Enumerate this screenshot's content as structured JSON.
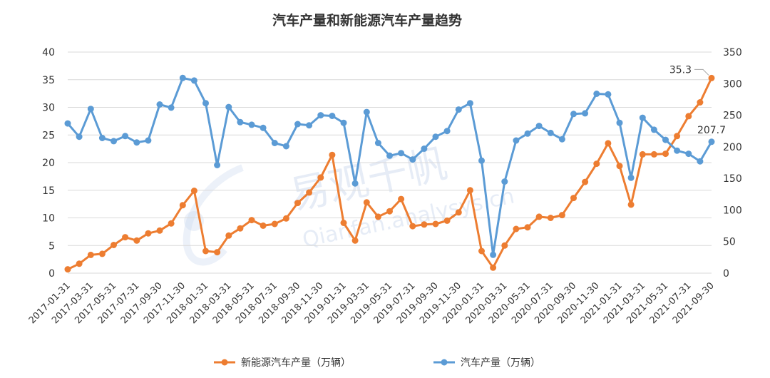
{
  "chart_data": {
    "type": "line",
    "title": "汽车产量和新能源汽车产量趋势",
    "xlabel": "",
    "ylabel_left": "",
    "ylabel_right": "",
    "ylim_left": [
      0,
      40
    ],
    "ylim_right": [
      0,
      350
    ],
    "yticks_left": [
      "0",
      "5",
      "10",
      "15",
      "20",
      "25",
      "30",
      "35",
      "40"
    ],
    "yticks_right": [
      "0",
      "50",
      "100",
      "150",
      "200",
      "250",
      "300",
      "350"
    ],
    "grid": true,
    "legend_position": "bottom",
    "x_tick_labels": [
      "2017-01-31",
      "2017-03-31",
      "2017-05-31",
      "2017-07-31",
      "2017-09-30",
      "2017-11-30",
      "2018-01-31",
      "2018-03-31",
      "2018-05-31",
      "2018-07-31",
      "2018-09-30",
      "2018-11-30",
      "2019-01-31",
      "2019-03-31",
      "2019-05-31",
      "2019-07-31",
      "2019-09-30",
      "2019-11-30",
      "2020-01-31",
      "2020-03-31",
      "2020-05-31",
      "2020-07-31",
      "2020-09-30",
      "2020-11-30",
      "2021-01-31",
      "2021-03-31",
      "2021-05-31",
      "2021-07-31",
      "2021-09-30"
    ],
    "x": [
      "2017-01",
      "2017-02",
      "2017-03",
      "2017-04",
      "2017-05",
      "2017-06",
      "2017-07",
      "2017-08",
      "2017-09",
      "2017-10",
      "2017-11",
      "2017-12",
      "2018-01",
      "2018-02",
      "2018-03",
      "2018-04",
      "2018-05",
      "2018-06",
      "2018-07",
      "2018-08",
      "2018-09",
      "2018-10",
      "2018-11",
      "2018-12",
      "2019-01",
      "2019-02",
      "2019-03",
      "2019-04",
      "2019-05",
      "2019-06",
      "2019-07",
      "2019-08",
      "2019-09",
      "2019-10",
      "2019-11",
      "2019-12",
      "2020-01",
      "2020-02",
      "2020-03",
      "2020-04",
      "2020-05",
      "2020-06",
      "2020-07",
      "2020-08",
      "2020-09",
      "2020-10",
      "2020-11",
      "2020-12",
      "2021-01",
      "2021-02",
      "2021-03",
      "2021-04",
      "2021-05",
      "2021-06",
      "2021-07",
      "2021-08",
      "2021-09"
    ],
    "series": [
      {
        "name": "新能源汽车产量（万辆）",
        "axis": "left",
        "color": "#ED7D31",
        "values": [
          0.7,
          1.7,
          3.3,
          3.5,
          5.1,
          6.5,
          5.9,
          7.2,
          7.7,
          9.0,
          12.3,
          14.9,
          4.0,
          3.8,
          6.8,
          8.1,
          9.6,
          8.6,
          8.9,
          9.9,
          12.7,
          14.6,
          17.3,
          21.4,
          9.1,
          5.9,
          12.8,
          10.2,
          11.2,
          13.4,
          8.5,
          8.8,
          8.9,
          9.5,
          11.0,
          15.0,
          4.0,
          1.0,
          5.0,
          8.0,
          8.3,
          10.2,
          10.0,
          10.5,
          13.6,
          16.5,
          19.8,
          23.5,
          19.4,
          12.4,
          21.5,
          21.5,
          21.6,
          24.8,
          28.4,
          30.9,
          35.3
        ]
      },
      {
        "name": "汽车产量（万辆）",
        "axis": "right",
        "color": "#5B9BD5",
        "values": [
          237,
          216,
          260,
          214,
          209,
          217,
          207,
          210,
          267,
          262,
          309,
          305,
          269,
          171,
          263,
          239,
          235,
          230,
          206,
          201,
          236,
          234,
          250,
          249,
          238,
          142,
          255,
          206,
          186,
          190,
          180,
          197,
          216,
          225,
          259,
          269,
          178,
          29,
          145,
          210,
          221,
          233,
          222,
          212,
          252,
          253,
          284,
          283,
          238,
          151,
          246,
          227,
          211,
          194,
          189,
          177,
          208
        ]
      }
    ],
    "annotations": [
      {
        "text": "35.3",
        "series": 0,
        "point": "last"
      },
      {
        "text": "207.7",
        "series": 1,
        "point": "last"
      }
    ]
  }
}
